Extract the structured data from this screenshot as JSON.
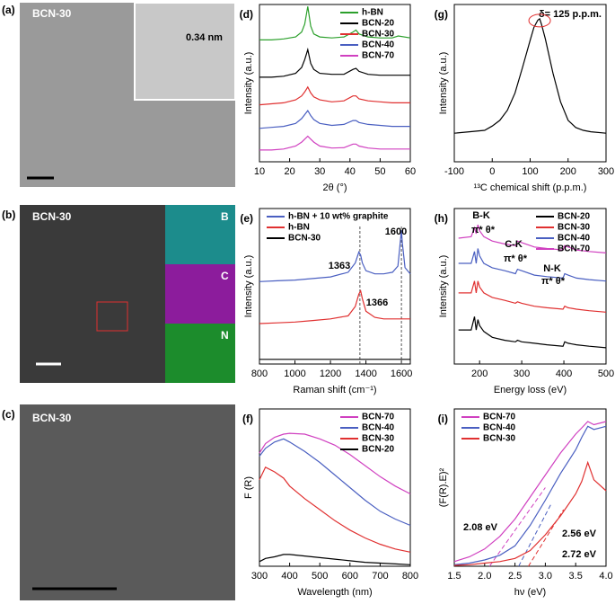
{
  "images": [
    {
      "panel": "(a)",
      "label": "BCN-30",
      "annotation": "0.34 nm"
    },
    {
      "panel": "(b)",
      "label": "BCN-30",
      "maps": [
        "B",
        "C",
        "N"
      ]
    },
    {
      "panel": "(c)",
      "label": "BCN-30"
    }
  ],
  "chart_data": [
    {
      "type": "line",
      "panel": "(d)",
      "xlabel": "2θ (°)",
      "ylabel": "Intensity (a.u.)",
      "xlim": [
        10,
        60
      ],
      "xticks": [
        10,
        20,
        30,
        40,
        50,
        60
      ],
      "ylim": [
        2,
        10
      ],
      "legend": "upper right",
      "x": [
        10,
        14,
        18,
        22,
        24,
        25,
        26,
        27,
        28,
        30,
        34,
        38,
        41,
        42,
        43,
        46,
        50,
        54,
        56,
        60
      ],
      "series": [
        {
          "name": "h-BN",
          "color": "#2ca02c",
          "values": [
            8.2,
            8.2,
            8.25,
            8.35,
            8.6,
            9.0,
            9.9,
            8.9,
            8.5,
            8.35,
            8.3,
            8.35,
            8.6,
            8.7,
            8.5,
            8.35,
            8.3,
            8.3,
            8.4,
            8.3
          ]
        },
        {
          "name": "BCN-20",
          "color": "#000000",
          "values": [
            6.3,
            6.3,
            6.35,
            6.5,
            6.8,
            7.2,
            7.7,
            7.0,
            6.7,
            6.5,
            6.45,
            6.45,
            6.7,
            6.75,
            6.6,
            6.45,
            6.4,
            6.4,
            6.4,
            6.4
          ]
        },
        {
          "name": "BCN-30",
          "color": "#e03030",
          "values": [
            4.9,
            4.95,
            5.0,
            5.15,
            5.35,
            5.55,
            5.8,
            5.5,
            5.3,
            5.15,
            5.05,
            5.1,
            5.35,
            5.35,
            5.2,
            5.1,
            5.05,
            5.0,
            5.0,
            5.0
          ]
        },
        {
          "name": "BCN-40",
          "color": "#4a5fc1",
          "values": [
            3.7,
            3.75,
            3.8,
            3.95,
            4.2,
            4.4,
            4.6,
            4.35,
            4.15,
            3.95,
            3.85,
            3.9,
            4.1,
            4.1,
            4.0,
            3.9,
            3.85,
            3.8,
            3.8,
            3.8
          ]
        },
        {
          "name": "BCN-70",
          "color": "#d040c0",
          "values": [
            2.6,
            2.6,
            2.65,
            2.8,
            3.0,
            3.15,
            3.3,
            3.15,
            3.0,
            2.8,
            2.7,
            2.72,
            2.9,
            2.9,
            2.8,
            2.7,
            2.65,
            2.65,
            2.65,
            2.65
          ]
        }
      ]
    },
    {
      "type": "line",
      "panel": "(g)",
      "xlabel": "¹³C chemical shift (p.p.m.)",
      "ylabel": "Intensity (a.u.)",
      "xlim": [
        -100,
        300
      ],
      "xticks": [
        -100,
        0,
        100,
        200,
        300
      ],
      "ylim": [
        0,
        11
      ],
      "annotations": [
        {
          "text": "δ= 125 p.p.m.",
          "color": "#000000"
        }
      ],
      "x": [
        -100,
        -60,
        -20,
        0,
        20,
        40,
        60,
        80,
        100,
        110,
        120,
        125,
        130,
        140,
        160,
        180,
        200,
        220,
        240,
        260,
        300
      ],
      "series": [
        {
          "color": "#000000",
          "values": [
            2.0,
            2.1,
            2.2,
            2.5,
            2.9,
            3.6,
            4.8,
            6.6,
            8.5,
            9.4,
            9.9,
            10,
            9.6,
            8.6,
            6.2,
            4.2,
            2.9,
            2.4,
            2.2,
            2.1,
            2.0
          ]
        }
      ]
    },
    {
      "type": "line",
      "panel": "(e)",
      "xlabel": "Raman shift (cm⁻¹)",
      "ylabel": "Intensity (a.u.)",
      "xlim": [
        800,
        1650
      ],
      "xticks": [
        800,
        1000,
        1200,
        1400,
        1600
      ],
      "ylim": [
        0,
        10
      ],
      "legend": "upper left",
      "annotations": [
        {
          "text": "1363",
          "color": "#000000"
        },
        {
          "text": "1366",
          "color": "#000000"
        },
        {
          "text": "1600",
          "color": "#000000"
        }
      ],
      "reference_lines": [
        1366,
        1600
      ],
      "x": [
        800,
        900,
        1000,
        1100,
        1200,
        1300,
        1340,
        1360,
        1370,
        1380,
        1400,
        1450,
        1500,
        1550,
        1580,
        1595,
        1600,
        1605,
        1620,
        1650
      ],
      "series": [
        {
          "name": "h-BN + 10 wt% graphite",
          "color": "#4a5fc1",
          "values": [
            5.3,
            5.35,
            5.4,
            5.5,
            5.6,
            5.9,
            6.5,
            7.2,
            7.0,
            6.5,
            6.0,
            5.8,
            5.8,
            5.9,
            6.3,
            8.0,
            8.6,
            7.8,
            6.2,
            5.8
          ]
        },
        {
          "name": "h-BN",
          "color": "#e03030",
          "values": [
            2.6,
            2.65,
            2.7,
            2.8,
            2.9,
            3.1,
            3.7,
            4.5,
            4.7,
            4.2,
            3.4,
            3.0,
            2.9,
            2.9,
            2.9,
            2.9,
            2.9,
            2.9,
            2.9,
            2.9
          ]
        },
        {
          "name": "BCN-30",
          "color": "#000000",
          "values": [
            0.3,
            0.3,
            0.3,
            0.3,
            0.3,
            0.3,
            0.3,
            0.3,
            0.3,
            0.3,
            0.3,
            0.3,
            0.3,
            0.3,
            0.3,
            0.3,
            0.3,
            0.3,
            0.3,
            0.3
          ]
        }
      ]
    },
    {
      "type": "line",
      "panel": "(h)",
      "xlabel": "Energy loss (eV)",
      "ylabel": "Intensity (a.u.)",
      "xlim": [
        140,
        500
      ],
      "xticks": [
        200,
        300,
        400,
        500
      ],
      "ylim": [
        0,
        10.5
      ],
      "legend": "upper right",
      "annotations": [
        {
          "text": "B-K",
          "color": "#000000"
        },
        {
          "text": "π*  θ*",
          "color": "#000000"
        },
        {
          "text": "C-K",
          "color": "#000000"
        },
        {
          "text": "π*  θ*",
          "color": "#000000"
        },
        {
          "text": "N-K",
          "color": "#000000"
        },
        {
          "text": "π*  θ*",
          "color": "#000000"
        }
      ],
      "x": [
        150,
        180,
        188,
        192,
        196,
        200,
        210,
        230,
        260,
        285,
        290,
        300,
        330,
        360,
        398,
        402,
        410,
        430,
        460,
        500
      ],
      "series": [
        {
          "name": "BCN-20",
          "color": "#000000",
          "values": [
            2.3,
            2.3,
            3.2,
            2.3,
            3.0,
            2.6,
            2.2,
            1.8,
            1.6,
            1.5,
            1.6,
            1.5,
            1.4,
            1.3,
            1.2,
            1.5,
            1.4,
            1.3,
            1.2,
            1.1
          ]
        },
        {
          "name": "BCN-30",
          "color": "#e03030",
          "values": [
            4.8,
            4.8,
            5.6,
            4.8,
            5.6,
            5.2,
            4.8,
            4.5,
            4.3,
            4.1,
            4.2,
            4.1,
            3.9,
            3.8,
            3.7,
            3.9,
            3.8,
            3.7,
            3.6,
            3.5
          ]
        },
        {
          "name": "BCN-40",
          "color": "#4a5fc1",
          "values": [
            6.8,
            6.8,
            7.6,
            6.8,
            7.8,
            7.3,
            6.8,
            6.5,
            6.3,
            6.1,
            6.4,
            6.3,
            6.0,
            5.9,
            5.8,
            6.1,
            6.0,
            5.8,
            5.7,
            5.6
          ]
        },
        {
          "name": "BCN-70",
          "color": "#d040c0",
          "values": [
            8.5,
            8.6,
            9.2,
            8.8,
            9.4,
            9.0,
            8.6,
            8.3,
            8.1,
            8.0,
            8.3,
            8.2,
            7.9,
            7.8,
            7.7,
            8.0,
            7.9,
            7.7,
            7.6,
            7.5
          ]
        }
      ]
    },
    {
      "type": "line",
      "panel": "(f)",
      "xlabel": "Wavelength (nm)",
      "ylabel": "F (R)",
      "xlim": [
        300,
        800
      ],
      "xticks": [
        300,
        400,
        500,
        600,
        700,
        800
      ],
      "ylim": [
        0,
        10
      ],
      "legend": "upper right",
      "x": [
        300,
        320,
        350,
        380,
        400,
        450,
        500,
        550,
        600,
        650,
        700,
        750,
        800
      ],
      "series": [
        {
          "name": "BCN-70",
          "color": "#d040c0",
          "values": [
            7.2,
            7.8,
            8.2,
            8.4,
            8.45,
            8.4,
            8.1,
            7.7,
            7.1,
            6.4,
            5.7,
            5.1,
            4.6
          ]
        },
        {
          "name": "BCN-40",
          "color": "#4a5fc1",
          "values": [
            7.0,
            7.5,
            7.9,
            8.1,
            7.9,
            7.3,
            6.6,
            5.8,
            5.0,
            4.2,
            3.5,
            3.0,
            2.6
          ]
        },
        {
          "name": "BCN-30",
          "color": "#e03030",
          "values": [
            5.5,
            6.3,
            6.0,
            5.6,
            5.1,
            4.3,
            3.6,
            2.9,
            2.3,
            1.8,
            1.4,
            1.1,
            0.9
          ]
        },
        {
          "name": "BCN-20",
          "color": "#000000",
          "values": [
            0.3,
            0.5,
            0.6,
            0.75,
            0.75,
            0.65,
            0.55,
            0.45,
            0.35,
            0.25,
            0.2,
            0.15,
            0.1
          ]
        }
      ]
    },
    {
      "type": "line",
      "panel": "(i)",
      "xlabel": "hν (eV)",
      "ylabel": "(F(R).E)²",
      "xlim": [
        1.5,
        4.0
      ],
      "xticks": [
        1.5,
        {
          "value": 2,
          "label": "2.0"
        },
        2.5,
        {
          "value": 3,
          "label": "3.0"
        },
        3.5,
        {
          "value": 4,
          "label": "4.0"
        }
      ],
      "ylim": [
        0,
        10
      ],
      "legend": "upper left",
      "annotations": [
        {
          "text": "2.08 eV",
          "color": "#d040c0"
        },
        {
          "text": "2.56 eV",
          "color": "#4a5fc1"
        },
        {
          "text": "2.72 eV",
          "color": "#e03030"
        }
      ],
      "x": [
        1.5,
        1.75,
        2.0,
        2.25,
        2.5,
        2.75,
        3.0,
        3.25,
        3.5,
        3.6,
        3.7,
        3.8,
        4.0
      ],
      "series": [
        {
          "name": "BCN-70",
          "color": "#d040c0",
          "values": [
            0.3,
            0.6,
            1.1,
            1.9,
            3.0,
            4.4,
            5.8,
            7.2,
            8.4,
            8.8,
            9.2,
            9.0,
            9.2
          ],
          "fit_x": [
            2.08,
            3.0
          ],
          "fit_y": [
            0,
            5.0
          ]
        },
        {
          "name": "BCN-40",
          "color": "#4a5fc1",
          "values": [
            0.1,
            0.2,
            0.4,
            0.7,
            1.3,
            2.6,
            4.2,
            5.9,
            7.4,
            8.2,
            8.9,
            8.7,
            8.9
          ],
          "fit_x": [
            2.56,
            3.1
          ],
          "fit_y": [
            0,
            4.0
          ]
        },
        {
          "name": "BCN-30",
          "color": "#e03030",
          "values": [
            0.05,
            0.1,
            0.2,
            0.3,
            0.5,
            1.0,
            2.0,
            3.2,
            4.6,
            5.4,
            6.6,
            5.5,
            4.8
          ],
          "fit_x": [
            2.72,
            3.3
          ],
          "fit_y": [
            0,
            3.6
          ]
        }
      ]
    }
  ]
}
